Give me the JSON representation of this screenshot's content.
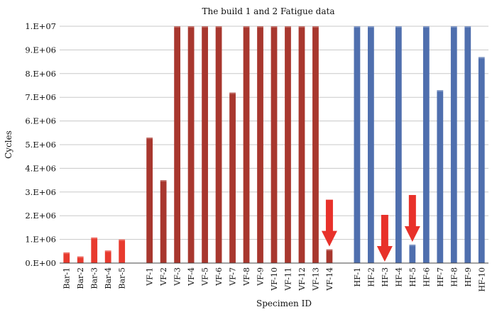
{
  "chart_data": {
    "type": "bar",
    "title": "The build 1 and 2 Fatigue data",
    "xlabel": "Specimen ID",
    "ylabel": "Cycles",
    "ylim": [
      0,
      10000000
    ],
    "yticks": [
      "0.E+00",
      "1.E+06",
      "2.E+06",
      "3.E+06",
      "4.E+06",
      "5.E+06",
      "6.E+06",
      "7.E+06",
      "8.E+06",
      "9.E+06",
      "1.E+07"
    ],
    "grid": true,
    "categories": [
      "Bar-1",
      "Bar-2",
      "Bar-3",
      "Bar-4",
      "Bar-5",
      "VF-1",
      "VF-2",
      "VF-3",
      "VF-4",
      "VF-5",
      "VF-6",
      "VF-7",
      "VF-8",
      "VF-9",
      "VF-10",
      "VF-11",
      "VF-12",
      "VF-13",
      "VF-14",
      "HF-1",
      "HF-2",
      "HF-3",
      "HF-4",
      "HF-5",
      "HF-6",
      "HF-7",
      "HF-8",
      "HF-9",
      "HF-10"
    ],
    "values": [
      450000,
      280000,
      1080000,
      530000,
      1000000,
      5300000,
      3500000,
      10000000,
      10000000,
      10000000,
      10000000,
      7200000,
      10000000,
      10000000,
      10000000,
      10000000,
      10000000,
      10000000,
      580000,
      10000000,
      10000000,
      0,
      10000000,
      780000,
      10000000,
      7300000,
      10000000,
      10000000,
      8700000
    ],
    "groups": [
      "Bar",
      "Bar",
      "Bar",
      "Bar",
      "Bar",
      "VF",
      "VF",
      "VF",
      "VF",
      "VF",
      "VF",
      "VF",
      "VF",
      "VF",
      "VF",
      "VF",
      "VF",
      "VF",
      "VF",
      "HF",
      "HF",
      "HF",
      "HF",
      "HF",
      "HF",
      "HF",
      "HF",
      "HF",
      "HF"
    ],
    "colors": {
      "Bar": "#e83a2e",
      "VF": "#a8372e",
      "HF": "#4f6fae",
      "arrow": "#e8312a",
      "grid": "#c8c8c8",
      "axis": "#444444"
    },
    "annotations": [
      {
        "type": "arrow",
        "category": "VF-14",
        "direction": "down"
      },
      {
        "type": "arrow",
        "category": "HF-3",
        "direction": "down"
      },
      {
        "type": "arrow",
        "category": "HF-5",
        "direction": "down"
      }
    ]
  }
}
